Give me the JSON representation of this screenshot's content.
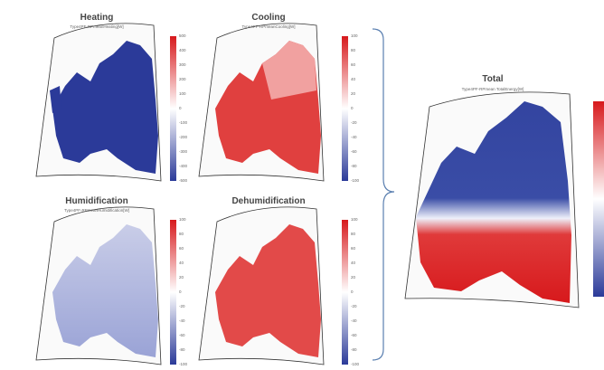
{
  "panels": [
    {
      "id": "heating",
      "title": "Heating",
      "subtitle": "Type4PF-RPmeanHeating[W]",
      "colorbar_ticks": [
        "500",
        "400",
        "300",
        "200",
        "100",
        "0",
        "-100",
        "-200",
        "-300",
        "-400",
        "-500"
      ],
      "dominant": "blue"
    },
    {
      "id": "cooling",
      "title": "Cooling",
      "subtitle": "Type4PF-RPmeanCooling[W]",
      "colorbar_ticks": [
        "100",
        "80",
        "60",
        "40",
        "20",
        "0",
        "-20",
        "-40",
        "-60",
        "-80",
        "-100"
      ],
      "dominant": "red"
    },
    {
      "id": "humidification",
      "title": "Humidification",
      "subtitle": "Type4PF-RPmeanHumidification[W]",
      "colorbar_ticks": [
        "100",
        "80",
        "60",
        "40",
        "20",
        "0",
        "-20",
        "-40",
        "-60",
        "-80",
        "-100"
      ],
      "dominant": "light-blue"
    },
    {
      "id": "dehumidification",
      "title": "Dehumidification",
      "subtitle": "",
      "colorbar_ticks": [
        "100",
        "80",
        "60",
        "40",
        "20",
        "0",
        "-20",
        "-40",
        "-60",
        "-80",
        "-100"
      ],
      "dominant": "red"
    },
    {
      "id": "total",
      "title": "Total",
      "subtitle": "Type4PF-RPmean TotalEnergy[W]",
      "colorbar_ticks": [],
      "dominant": "split"
    }
  ],
  "colors": {
    "red": "#d7191c",
    "blue": "#2b3a99",
    "white": "#ffffff",
    "bracket": "#5a7fb0"
  }
}
